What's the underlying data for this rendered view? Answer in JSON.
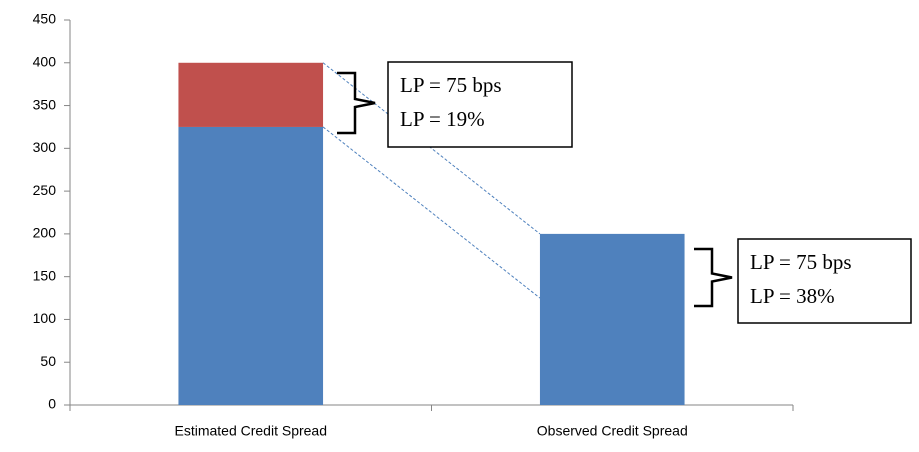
{
  "chart_data": {
    "type": "stacked_bar",
    "categories": [
      "Estimated Credit Spread",
      "Observed Credit Spread"
    ],
    "series": [
      {
        "color": "#4f81bd",
        "values": [
          325,
          200
        ]
      },
      {
        "color": "#c0504d",
        "values": [
          75,
          null
        ]
      }
    ],
    "ylim": [
      0,
      450
    ],
    "yticks": [
      0,
      50,
      100,
      150,
      200,
      250,
      300,
      350,
      400,
      450
    ],
    "annotations": [
      {
        "lines": [
          "LP = 75 bps",
          "LP = 19%"
        ]
      },
      {
        "lines": [
          "LP = 75 bps",
          "LP = 38%"
        ]
      }
    ]
  }
}
